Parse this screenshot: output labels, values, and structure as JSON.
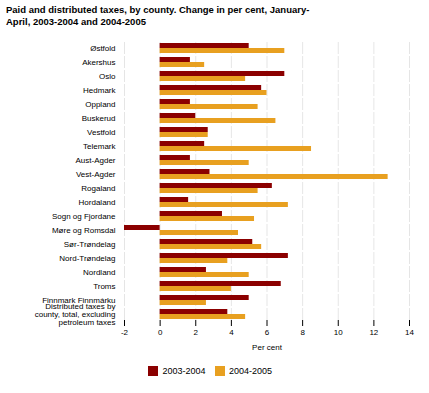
{
  "chart_data": {
    "type": "bar",
    "orientation": "horizontal",
    "title": "Paid and distributed taxes, by county. Change in per cent, January-\nApril, 2003-2004 and 2004-2005",
    "categories": [
      "Østfold",
      "Akershus",
      "Oslo",
      "Hedmark",
      "Oppland",
      "Buskerud",
      "Vestfold",
      "Telemark",
      "Aust-Agder",
      "Vest-Agder",
      "Rogaland",
      "Hordaland",
      "Sogn og Fjordane",
      "Møre og Romsdal",
      "Sør-Trøndelag",
      "Nord-Trøndelag",
      "Nordland",
      "Troms",
      "Finnmark Finnmárku",
      "Distributed taxes by\ncounty, total, excluding\npetroleum taxes"
    ],
    "series": [
      {
        "name": "2003-2004",
        "color": "#8B0000",
        "values": [
          5.0,
          1.7,
          7.0,
          5.7,
          1.7,
          2.0,
          2.7,
          2.5,
          1.7,
          2.8,
          6.3,
          1.6,
          3.5,
          -2.0,
          5.2,
          7.2,
          2.6,
          6.8,
          5.0,
          3.8
        ]
      },
      {
        "name": "2004-2005",
        "color": "#E8A020",
        "values": [
          7.0,
          2.5,
          4.8,
          6.0,
          5.5,
          6.5,
          2.7,
          8.5,
          5.0,
          12.8,
          5.5,
          7.2,
          5.3,
          4.4,
          5.7,
          3.8,
          5.0,
          4.0,
          2.6,
          4.8
        ]
      }
    ],
    "xlabel": "Per cent",
    "xlim": [
      -2,
      14
    ],
    "xticks": [
      -2,
      0,
      2,
      4,
      6,
      8,
      10,
      12,
      14
    ],
    "grid": true,
    "legend": "bottom"
  }
}
